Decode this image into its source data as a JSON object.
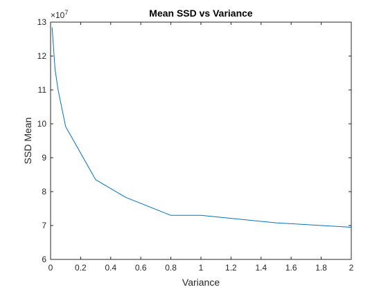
{
  "chart_data": {
    "type": "line",
    "title": "Mean SSD vs Variance",
    "xlabel": "Variance",
    "ylabel": "SSD Mean",
    "y_multiplier_label": "×10",
    "y_multiplier_exponent": "7",
    "xlim": [
      0,
      2
    ],
    "ylim": [
      6,
      13
    ],
    "x_ticks": [
      "0",
      "0.2",
      "0.4",
      "0.6",
      "0.8",
      "1",
      "1.2",
      "1.4",
      "1.6",
      "1.8",
      "2"
    ],
    "y_ticks": [
      "6",
      "7",
      "8",
      "9",
      "10",
      "11",
      "12",
      "13"
    ],
    "grid": false,
    "series": [
      {
        "color": "#0072BD",
        "x": [
          0.01,
          0.03,
          0.05,
          0.1,
          0.3,
          0.5,
          0.8,
          1.0,
          1.5,
          2.0
        ],
        "y": [
          12.85,
          11.6,
          11.0,
          9.92,
          8.35,
          7.83,
          7.3,
          7.3,
          7.08,
          6.95
        ]
      }
    ]
  }
}
